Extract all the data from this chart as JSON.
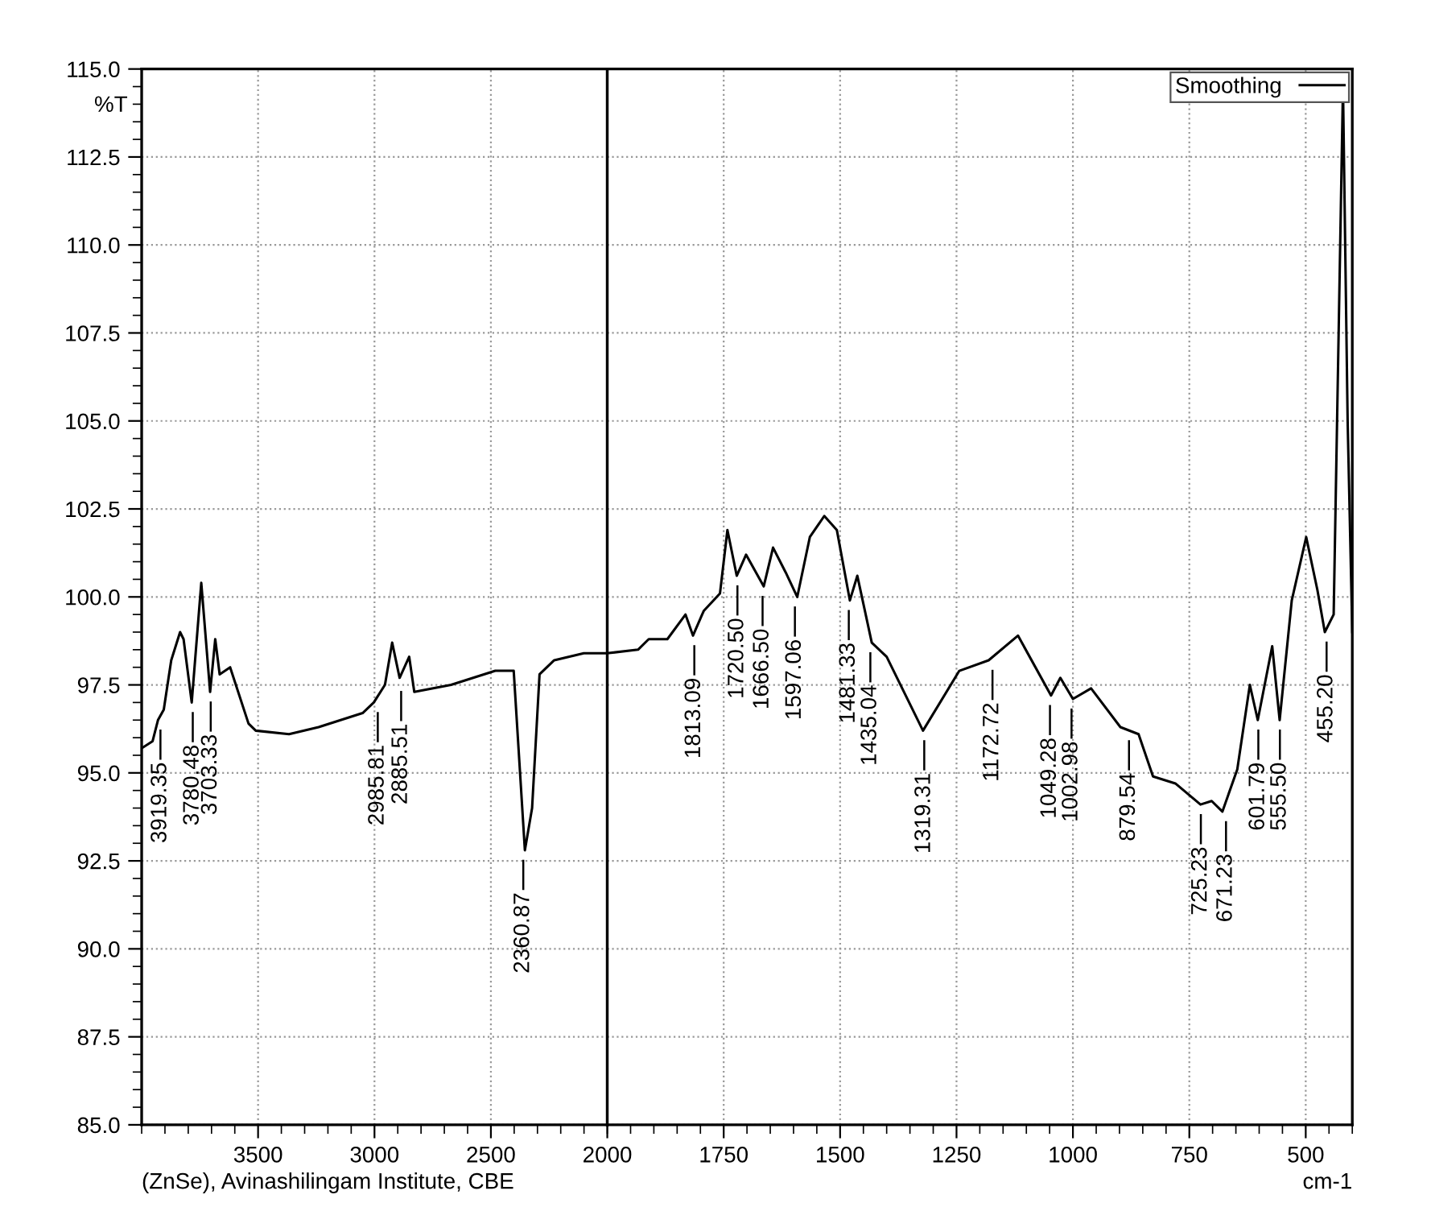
{
  "chart_data": [
    {
      "type": "line",
      "ylabel": "%T",
      "xlim": [
        4000,
        2000
      ],
      "xticks": [
        3500,
        3000,
        2500
      ],
      "ylim": [
        85,
        115
      ],
      "yticks": [
        {
          "value": 85,
          "label": "85.0"
        },
        {
          "value": 87.5,
          "label": "87.5"
        },
        {
          "value": 90,
          "label": "90.0"
        },
        {
          "value": 92.5,
          "label": "92.5"
        },
        {
          "value": 95,
          "label": "95.0"
        },
        {
          "value": 97.5,
          "label": "97.5"
        },
        {
          "value": 100,
          "label": "100.0"
        },
        {
          "value": 102.5,
          "label": "102.5"
        },
        {
          "value": 105,
          "label": "105.0"
        },
        {
          "value": 107.5,
          "label": "107.5"
        },
        {
          "value": 110,
          "label": "110.0"
        },
        {
          "value": 112.5,
          "label": "112.5"
        },
        {
          "value": 115,
          "label": "115.0"
        }
      ],
      "grid": true,
      "line_style": "solid",
      "marker": "none",
      "series": [
        {
          "color": "#000000",
          "x": [
            4000,
            3953,
            3930,
            3905,
            3889,
            3873,
            3835,
            3820,
            3785,
            3744,
            3706,
            3684,
            3665,
            3620,
            3541,
            3510,
            3367,
            3240,
            3051,
            3003,
            2955,
            2924,
            2892,
            2851,
            2829,
            2671,
            2481,
            2402,
            2354,
            2323,
            2291,
            2228,
            2101,
            2000
          ],
          "values": [
            95.7,
            95.9,
            96.5,
            96.8,
            97.5,
            98.2,
            99.0,
            98.8,
            97.0,
            100.4,
            97.3,
            98.8,
            97.8,
            98.0,
            96.4,
            96.2,
            96.1,
            96.3,
            96.7,
            97.0,
            97.5,
            98.7,
            97.7,
            98.3,
            97.3,
            97.5,
            97.9,
            97.9,
            92.8,
            94.0,
            97.8,
            98.2,
            98.4,
            98.4
          ]
        }
      ],
      "annotations": [
        {
          "text": "3919.35",
          "x": 3919.35,
          "y": 96.5
        },
        {
          "text": "3780.48",
          "x": 3780.48,
          "y": 97.0
        },
        {
          "text": "3703.33",
          "x": 3703.33,
          "y": 97.3
        },
        {
          "text": "2985.81",
          "x": 2985.81,
          "y": 97.0
        },
        {
          "text": "2885.51",
          "x": 2885.51,
          "y": 97.6
        },
        {
          "text": "2360.87",
          "x": 2360.87,
          "y": 92.8
        },
        "(ZnSe), Avinashilingam Institute, CBE"
      ]
    },
    {
      "type": "line",
      "xlabel": "cm-1",
      "xlim": [
        2000,
        400
      ],
      "xticks": [
        2000,
        1750,
        1500,
        1250,
        1000,
        750,
        500
      ],
      "ylim": [
        85,
        115
      ],
      "yticks": [
        85,
        87.5,
        90,
        92.5,
        95,
        97.5,
        100,
        102.5,
        105,
        107.5,
        110,
        112.5,
        115
      ],
      "tick_labels": "x",
      "grid": true,
      "legend": "top right",
      "line_style": "solid",
      "marker": "none",
      "series": [
        {
          "name": "Smoothing",
          "color": "#000000",
          "x": [
            2000,
            1934,
            1911,
            1871,
            1832,
            1816,
            1793,
            1758,
            1742,
            1722,
            1702,
            1664,
            1644,
            1617,
            1592,
            1565,
            1534,
            1507,
            1479,
            1463,
            1432,
            1400,
            1322,
            1244,
            1181,
            1118,
            1047,
            1027,
            1000,
            961,
            898,
            859,
            828,
            780,
            726,
            702,
            679,
            647,
            620,
            603,
            572,
            556,
            530,
            499,
            475,
            459,
            440,
            420,
            410,
            400
          ],
          "values": [
            98.4,
            98.5,
            98.8,
            98.8,
            99.5,
            98.9,
            99.6,
            100.1,
            101.9,
            100.6,
            101.2,
            100.3,
            101.4,
            100.7,
            100.0,
            101.7,
            102.3,
            101.9,
            99.9,
            100.6,
            98.7,
            98.3,
            96.2,
            97.9,
            98.2,
            98.9,
            97.2,
            97.7,
            97.1,
            97.4,
            96.3,
            96.1,
            94.9,
            94.7,
            94.1,
            94.2,
            93.9,
            95.1,
            97.5,
            96.5,
            98.6,
            96.5,
            99.9,
            101.7,
            100.2,
            99.0,
            99.5,
            114.5,
            105.0,
            99.0
          ]
        }
      ],
      "annotations": [
        {
          "text": "1813.09",
          "x": 1813.09,
          "y": 98.9
        },
        {
          "text": "1720.50",
          "x": 1720.5,
          "y": 100.6
        },
        {
          "text": "1666.50",
          "x": 1666.5,
          "y": 100.3
        },
        {
          "text": "1597.06",
          "x": 1597.06,
          "y": 100.0
        },
        {
          "text": "1481.33",
          "x": 1481.33,
          "y": 99.9
        },
        {
          "text": "1435.04",
          "x": 1435.04,
          "y": 98.7
        },
        {
          "text": "1319.31",
          "x": 1319.31,
          "y": 96.2
        },
        {
          "text": "1172.72",
          "x": 1172.72,
          "y": 98.2
        },
        {
          "text": "1049.28",
          "x": 1049.28,
          "y": 97.2
        },
        {
          "text": "1002.98",
          "x": 1002.98,
          "y": 97.1
        },
        {
          "text": "879.54",
          "x": 879.54,
          "y": 96.2
        },
        {
          "text": "725.23",
          "x": 725.23,
          "y": 94.1
        },
        {
          "text": "671.23",
          "x": 671.23,
          "y": 93.9
        },
        {
          "text": "601.79",
          "x": 601.79,
          "y": 96.5
        },
        {
          "text": "555.50",
          "x": 555.5,
          "y": 96.5
        },
        {
          "text": "455.20",
          "x": 455.2,
          "y": 99.0
        }
      ]
    }
  ]
}
